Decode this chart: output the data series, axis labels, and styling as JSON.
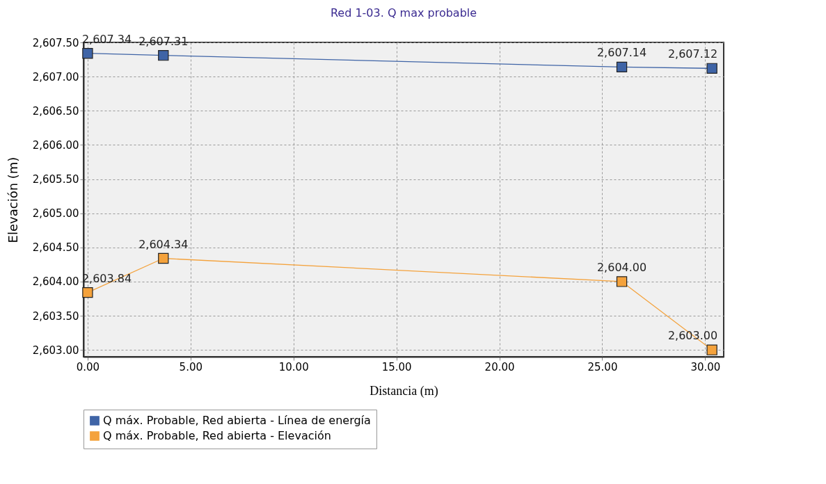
{
  "chart_data": {
    "type": "line",
    "title": "Red 1-03. Q max probable",
    "xlabel": "Distancia (m)",
    "ylabel": "Elevación (m)",
    "x": [
      0,
      3.68,
      25.95,
      30.33
    ],
    "series": [
      {
        "name": "Q máx. Probable, Red abierta - Línea de energía",
        "color": "#3f64a6",
        "values": [
          2607.34,
          2607.31,
          2607.14,
          2607.12
        ],
        "value_labels": [
          "2,607.34",
          "2,607.31",
          "2,607.14",
          "2,607.12"
        ]
      },
      {
        "name": "Q máx. Probable, Red abierta - Elevación",
        "color": "#f4a23c",
        "values": [
          2603.84,
          2604.34,
          2604.0,
          2603.0
        ],
        "value_labels": [
          "2,603.84",
          "2,604.34",
          "2,604.00",
          "2,603.00"
        ]
      }
    ],
    "xlim": [
      -0.2,
      30.9
    ],
    "ylim": [
      2602.9,
      2607.5
    ],
    "xticks": [
      {
        "value": 0,
        "label": "0.00"
      },
      {
        "value": 5,
        "label": "5.00"
      },
      {
        "value": 10,
        "label": "10.00"
      },
      {
        "value": 15,
        "label": "15.00"
      },
      {
        "value": 20,
        "label": "20.00"
      },
      {
        "value": 25,
        "label": "25.00"
      },
      {
        "value": 30,
        "label": "30.00"
      }
    ],
    "yticks": [
      {
        "value": 2603,
        "label": "2,603.00"
      },
      {
        "value": 2603.5,
        "label": "2,603.50"
      },
      {
        "value": 2604,
        "label": "2,604.00"
      },
      {
        "value": 2604.5,
        "label": "2,604.50"
      },
      {
        "value": 2605,
        "label": "2,605.00"
      },
      {
        "value": 2605.5,
        "label": "2,605.50"
      },
      {
        "value": 2606,
        "label": "2,606.00"
      },
      {
        "value": 2606.5,
        "label": "2,606.50"
      },
      {
        "value": 2607,
        "label": "2,607.00"
      },
      {
        "value": 2607.5,
        "label": "2,607.50"
      }
    ],
    "grid": true,
    "legend": "bottom",
    "marker": "square",
    "line_style": "solid"
  }
}
